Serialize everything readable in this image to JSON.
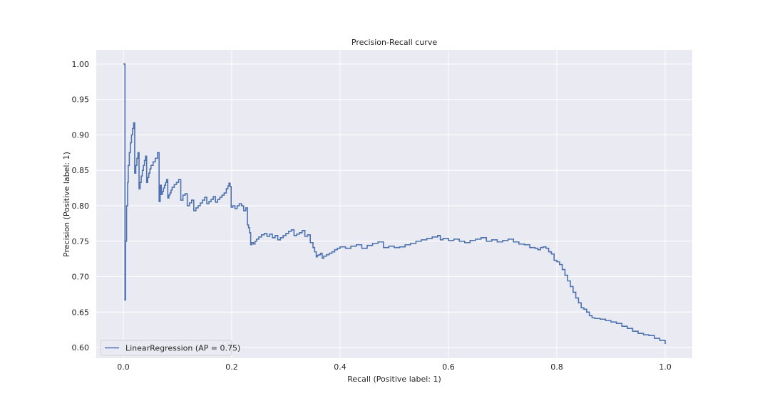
{
  "chart_data": {
    "type": "line",
    "title": "Precision-Recall curve",
    "xlabel": "Recall (Positive label: 1)",
    "ylabel": "Precision (Positive label: 1)",
    "xlim": [
      -0.05,
      1.05
    ],
    "ylim": [
      0.585,
      1.02
    ],
    "xticks": [
      0.0,
      0.2,
      0.4,
      0.6,
      0.8,
      1.0
    ],
    "xtick_labels": [
      "0.0",
      "0.2",
      "0.4",
      "0.6",
      "0.8",
      "1.0"
    ],
    "yticks": [
      0.6,
      0.65,
      0.7,
      0.75,
      0.8,
      0.85,
      0.9,
      0.95,
      1.0
    ],
    "ytick_labels": [
      "0.60",
      "0.65",
      "0.70",
      "0.75",
      "0.80",
      "0.85",
      "0.90",
      "0.95",
      "1.00"
    ],
    "grid": true,
    "legend_position": "lower-left",
    "colors": {
      "background": "#eaeaf2",
      "grid": "#ffffff",
      "series": "#4c72b0"
    },
    "series": [
      {
        "name": "LinearRegression (AP = 0.75)",
        "step": "post",
        "x": [
          0.0,
          0.003,
          0.003,
          0.004,
          0.006,
          0.008,
          0.009,
          0.011,
          0.013,
          0.015,
          0.017,
          0.019,
          0.021,
          0.023,
          0.025,
          0.027,
          0.029,
          0.031,
          0.033,
          0.035,
          0.037,
          0.039,
          0.041,
          0.043,
          0.045,
          0.047,
          0.049,
          0.051,
          0.055,
          0.059,
          0.063,
          0.066,
          0.068,
          0.07,
          0.072,
          0.074,
          0.076,
          0.078,
          0.08,
          0.082,
          0.084,
          0.086,
          0.088,
          0.09,
          0.094,
          0.098,
          0.102,
          0.106,
          0.11,
          0.114,
          0.118,
          0.122,
          0.126,
          0.13,
          0.134,
          0.138,
          0.142,
          0.146,
          0.15,
          0.154,
          0.158,
          0.162,
          0.166,
          0.17,
          0.174,
          0.178,
          0.182,
          0.186,
          0.19,
          0.193,
          0.195,
          0.197,
          0.199,
          0.202,
          0.206,
          0.21,
          0.214,
          0.218,
          0.222,
          0.226,
          0.229,
          0.231,
          0.233,
          0.235,
          0.237,
          0.24,
          0.243,
          0.246,
          0.25,
          0.255,
          0.26,
          0.265,
          0.27,
          0.275,
          0.28,
          0.285,
          0.29,
          0.295,
          0.3,
          0.305,
          0.31,
          0.315,
          0.32,
          0.325,
          0.33,
          0.335,
          0.34,
          0.345,
          0.35,
          0.353,
          0.356,
          0.358,
          0.361,
          0.364,
          0.367,
          0.37,
          0.375,
          0.38,
          0.385,
          0.39,
          0.395,
          0.4,
          0.41,
          0.42,
          0.43,
          0.44,
          0.45,
          0.46,
          0.47,
          0.48,
          0.49,
          0.5,
          0.51,
          0.52,
          0.53,
          0.54,
          0.55,
          0.56,
          0.57,
          0.58,
          0.585,
          0.59,
          0.6,
          0.61,
          0.62,
          0.63,
          0.64,
          0.65,
          0.66,
          0.67,
          0.68,
          0.69,
          0.7,
          0.71,
          0.72,
          0.73,
          0.74,
          0.75,
          0.76,
          0.765,
          0.77,
          0.775,
          0.78,
          0.785,
          0.79,
          0.795,
          0.8,
          0.805,
          0.81,
          0.815,
          0.82,
          0.825,
          0.83,
          0.835,
          0.84,
          0.845,
          0.85,
          0.855,
          0.86,
          0.865,
          0.87,
          0.88,
          0.89,
          0.9,
          0.91,
          0.92,
          0.93,
          0.94,
          0.95,
          0.96,
          0.97,
          0.98,
          0.99,
          1.0
        ],
        "y": [
          1.0,
          1.0,
          0.667,
          0.75,
          0.8,
          0.833,
          0.857,
          0.875,
          0.889,
          0.9,
          0.909,
          0.917,
          0.846,
          0.857,
          0.867,
          0.875,
          0.824,
          0.833,
          0.842,
          0.85,
          0.857,
          0.864,
          0.87,
          0.833,
          0.84,
          0.846,
          0.852,
          0.857,
          0.862,
          0.867,
          0.875,
          0.806,
          0.829,
          0.816,
          0.82,
          0.825,
          0.829,
          0.833,
          0.837,
          0.811,
          0.815,
          0.818,
          0.822,
          0.826,
          0.83,
          0.833,
          0.837,
          0.808,
          0.815,
          0.817,
          0.8,
          0.804,
          0.808,
          0.793,
          0.797,
          0.8,
          0.804,
          0.808,
          0.812,
          0.803,
          0.806,
          0.809,
          0.813,
          0.805,
          0.809,
          0.812,
          0.815,
          0.818,
          0.824,
          0.828,
          0.832,
          0.827,
          0.798,
          0.8,
          0.796,
          0.8,
          0.803,
          0.8,
          0.793,
          0.797,
          0.773,
          0.769,
          0.762,
          0.745,
          0.748,
          0.746,
          0.75,
          0.753,
          0.756,
          0.759,
          0.761,
          0.757,
          0.76,
          0.755,
          0.758,
          0.752,
          0.755,
          0.758,
          0.761,
          0.764,
          0.766,
          0.758,
          0.76,
          0.762,
          0.765,
          0.757,
          0.759,
          0.748,
          0.741,
          0.735,
          0.728,
          0.73,
          0.731,
          0.733,
          0.726,
          0.729,
          0.731,
          0.733,
          0.735,
          0.738,
          0.74,
          0.742,
          0.74,
          0.743,
          0.745,
          0.74,
          0.744,
          0.747,
          0.749,
          0.741,
          0.743,
          0.741,
          0.742,
          0.745,
          0.747,
          0.75,
          0.752,
          0.754,
          0.756,
          0.758,
          0.752,
          0.754,
          0.751,
          0.753,
          0.75,
          0.748,
          0.751,
          0.753,
          0.755,
          0.75,
          0.752,
          0.749,
          0.751,
          0.753,
          0.749,
          0.746,
          0.745,
          0.741,
          0.74,
          0.738,
          0.741,
          0.742,
          0.74,
          0.735,
          0.732,
          0.723,
          0.721,
          0.717,
          0.71,
          0.702,
          0.694,
          0.686,
          0.678,
          0.67,
          0.663,
          0.656,
          0.654,
          0.65,
          0.645,
          0.642,
          0.641,
          0.64,
          0.638,
          0.636,
          0.634,
          0.63,
          0.627,
          0.623,
          0.62,
          0.618,
          0.617,
          0.613,
          0.61,
          0.605
        ]
      }
    ]
  }
}
